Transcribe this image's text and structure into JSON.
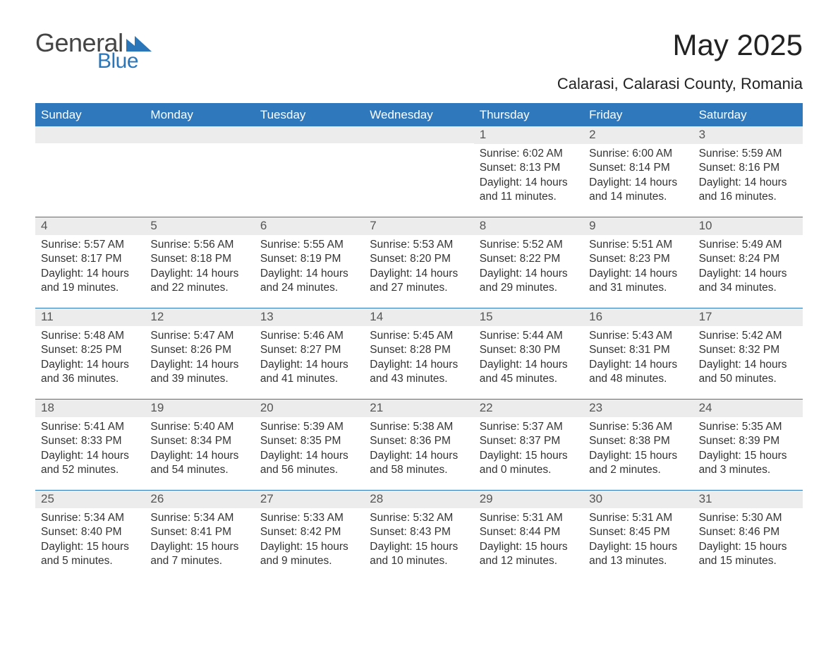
{
  "brand": {
    "word1": "General",
    "word2": "Blue",
    "word1_color": "#444444",
    "word2_color": "#2b76b9",
    "triangle_color": "#2b76b9"
  },
  "header": {
    "month_title": "May 2025",
    "location": "Calarasi, Calarasi County, Romania",
    "title_color": "#222222"
  },
  "calendar": {
    "header_bg": "#2f78bb",
    "header_text_color": "#ffffff",
    "row_divider_color": "#2f78bb",
    "daynum_bg": "#ececec",
    "daynum_color": "#555555",
    "body_text_color": "#333333",
    "background_color": "#ffffff",
    "label_sunrise": "Sunrise",
    "label_sunset": "Sunset",
    "label_daylight": "Daylight",
    "weekdays": [
      "Sunday",
      "Monday",
      "Tuesday",
      "Wednesday",
      "Thursday",
      "Friday",
      "Saturday"
    ],
    "weeks": [
      [
        null,
        null,
        null,
        null,
        {
          "n": "1",
          "sunrise": "6:02 AM",
          "sunset": "8:13 PM",
          "daylight": "14 hours and 11 minutes."
        },
        {
          "n": "2",
          "sunrise": "6:00 AM",
          "sunset": "8:14 PM",
          "daylight": "14 hours and 14 minutes."
        },
        {
          "n": "3",
          "sunrise": "5:59 AM",
          "sunset": "8:16 PM",
          "daylight": "14 hours and 16 minutes."
        }
      ],
      [
        {
          "n": "4",
          "sunrise": "5:57 AM",
          "sunset": "8:17 PM",
          "daylight": "14 hours and 19 minutes."
        },
        {
          "n": "5",
          "sunrise": "5:56 AM",
          "sunset": "8:18 PM",
          "daylight": "14 hours and 22 minutes."
        },
        {
          "n": "6",
          "sunrise": "5:55 AM",
          "sunset": "8:19 PM",
          "daylight": "14 hours and 24 minutes."
        },
        {
          "n": "7",
          "sunrise": "5:53 AM",
          "sunset": "8:20 PM",
          "daylight": "14 hours and 27 minutes."
        },
        {
          "n": "8",
          "sunrise": "5:52 AM",
          "sunset": "8:22 PM",
          "daylight": "14 hours and 29 minutes."
        },
        {
          "n": "9",
          "sunrise": "5:51 AM",
          "sunset": "8:23 PM",
          "daylight": "14 hours and 31 minutes."
        },
        {
          "n": "10",
          "sunrise": "5:49 AM",
          "sunset": "8:24 PM",
          "daylight": "14 hours and 34 minutes."
        }
      ],
      [
        {
          "n": "11",
          "sunrise": "5:48 AM",
          "sunset": "8:25 PM",
          "daylight": "14 hours and 36 minutes."
        },
        {
          "n": "12",
          "sunrise": "5:47 AM",
          "sunset": "8:26 PM",
          "daylight": "14 hours and 39 minutes."
        },
        {
          "n": "13",
          "sunrise": "5:46 AM",
          "sunset": "8:27 PM",
          "daylight": "14 hours and 41 minutes."
        },
        {
          "n": "14",
          "sunrise": "5:45 AM",
          "sunset": "8:28 PM",
          "daylight": "14 hours and 43 minutes."
        },
        {
          "n": "15",
          "sunrise": "5:44 AM",
          "sunset": "8:30 PM",
          "daylight": "14 hours and 45 minutes."
        },
        {
          "n": "16",
          "sunrise": "5:43 AM",
          "sunset": "8:31 PM",
          "daylight": "14 hours and 48 minutes."
        },
        {
          "n": "17",
          "sunrise": "5:42 AM",
          "sunset": "8:32 PM",
          "daylight": "14 hours and 50 minutes."
        }
      ],
      [
        {
          "n": "18",
          "sunrise": "5:41 AM",
          "sunset": "8:33 PM",
          "daylight": "14 hours and 52 minutes."
        },
        {
          "n": "19",
          "sunrise": "5:40 AM",
          "sunset": "8:34 PM",
          "daylight": "14 hours and 54 minutes."
        },
        {
          "n": "20",
          "sunrise": "5:39 AM",
          "sunset": "8:35 PM",
          "daylight": "14 hours and 56 minutes."
        },
        {
          "n": "21",
          "sunrise": "5:38 AM",
          "sunset": "8:36 PM",
          "daylight": "14 hours and 58 minutes."
        },
        {
          "n": "22",
          "sunrise": "5:37 AM",
          "sunset": "8:37 PM",
          "daylight": "15 hours and 0 minutes."
        },
        {
          "n": "23",
          "sunrise": "5:36 AM",
          "sunset": "8:38 PM",
          "daylight": "15 hours and 2 minutes."
        },
        {
          "n": "24",
          "sunrise": "5:35 AM",
          "sunset": "8:39 PM",
          "daylight": "15 hours and 3 minutes."
        }
      ],
      [
        {
          "n": "25",
          "sunrise": "5:34 AM",
          "sunset": "8:40 PM",
          "daylight": "15 hours and 5 minutes."
        },
        {
          "n": "26",
          "sunrise": "5:34 AM",
          "sunset": "8:41 PM",
          "daylight": "15 hours and 7 minutes."
        },
        {
          "n": "27",
          "sunrise": "5:33 AM",
          "sunset": "8:42 PM",
          "daylight": "15 hours and 9 minutes."
        },
        {
          "n": "28",
          "sunrise": "5:32 AM",
          "sunset": "8:43 PM",
          "daylight": "15 hours and 10 minutes."
        },
        {
          "n": "29",
          "sunrise": "5:31 AM",
          "sunset": "8:44 PM",
          "daylight": "15 hours and 12 minutes."
        },
        {
          "n": "30",
          "sunrise": "5:31 AM",
          "sunset": "8:45 PM",
          "daylight": "15 hours and 13 minutes."
        },
        {
          "n": "31",
          "sunrise": "5:30 AM",
          "sunset": "8:46 PM",
          "daylight": "15 hours and 15 minutes."
        }
      ]
    ]
  }
}
